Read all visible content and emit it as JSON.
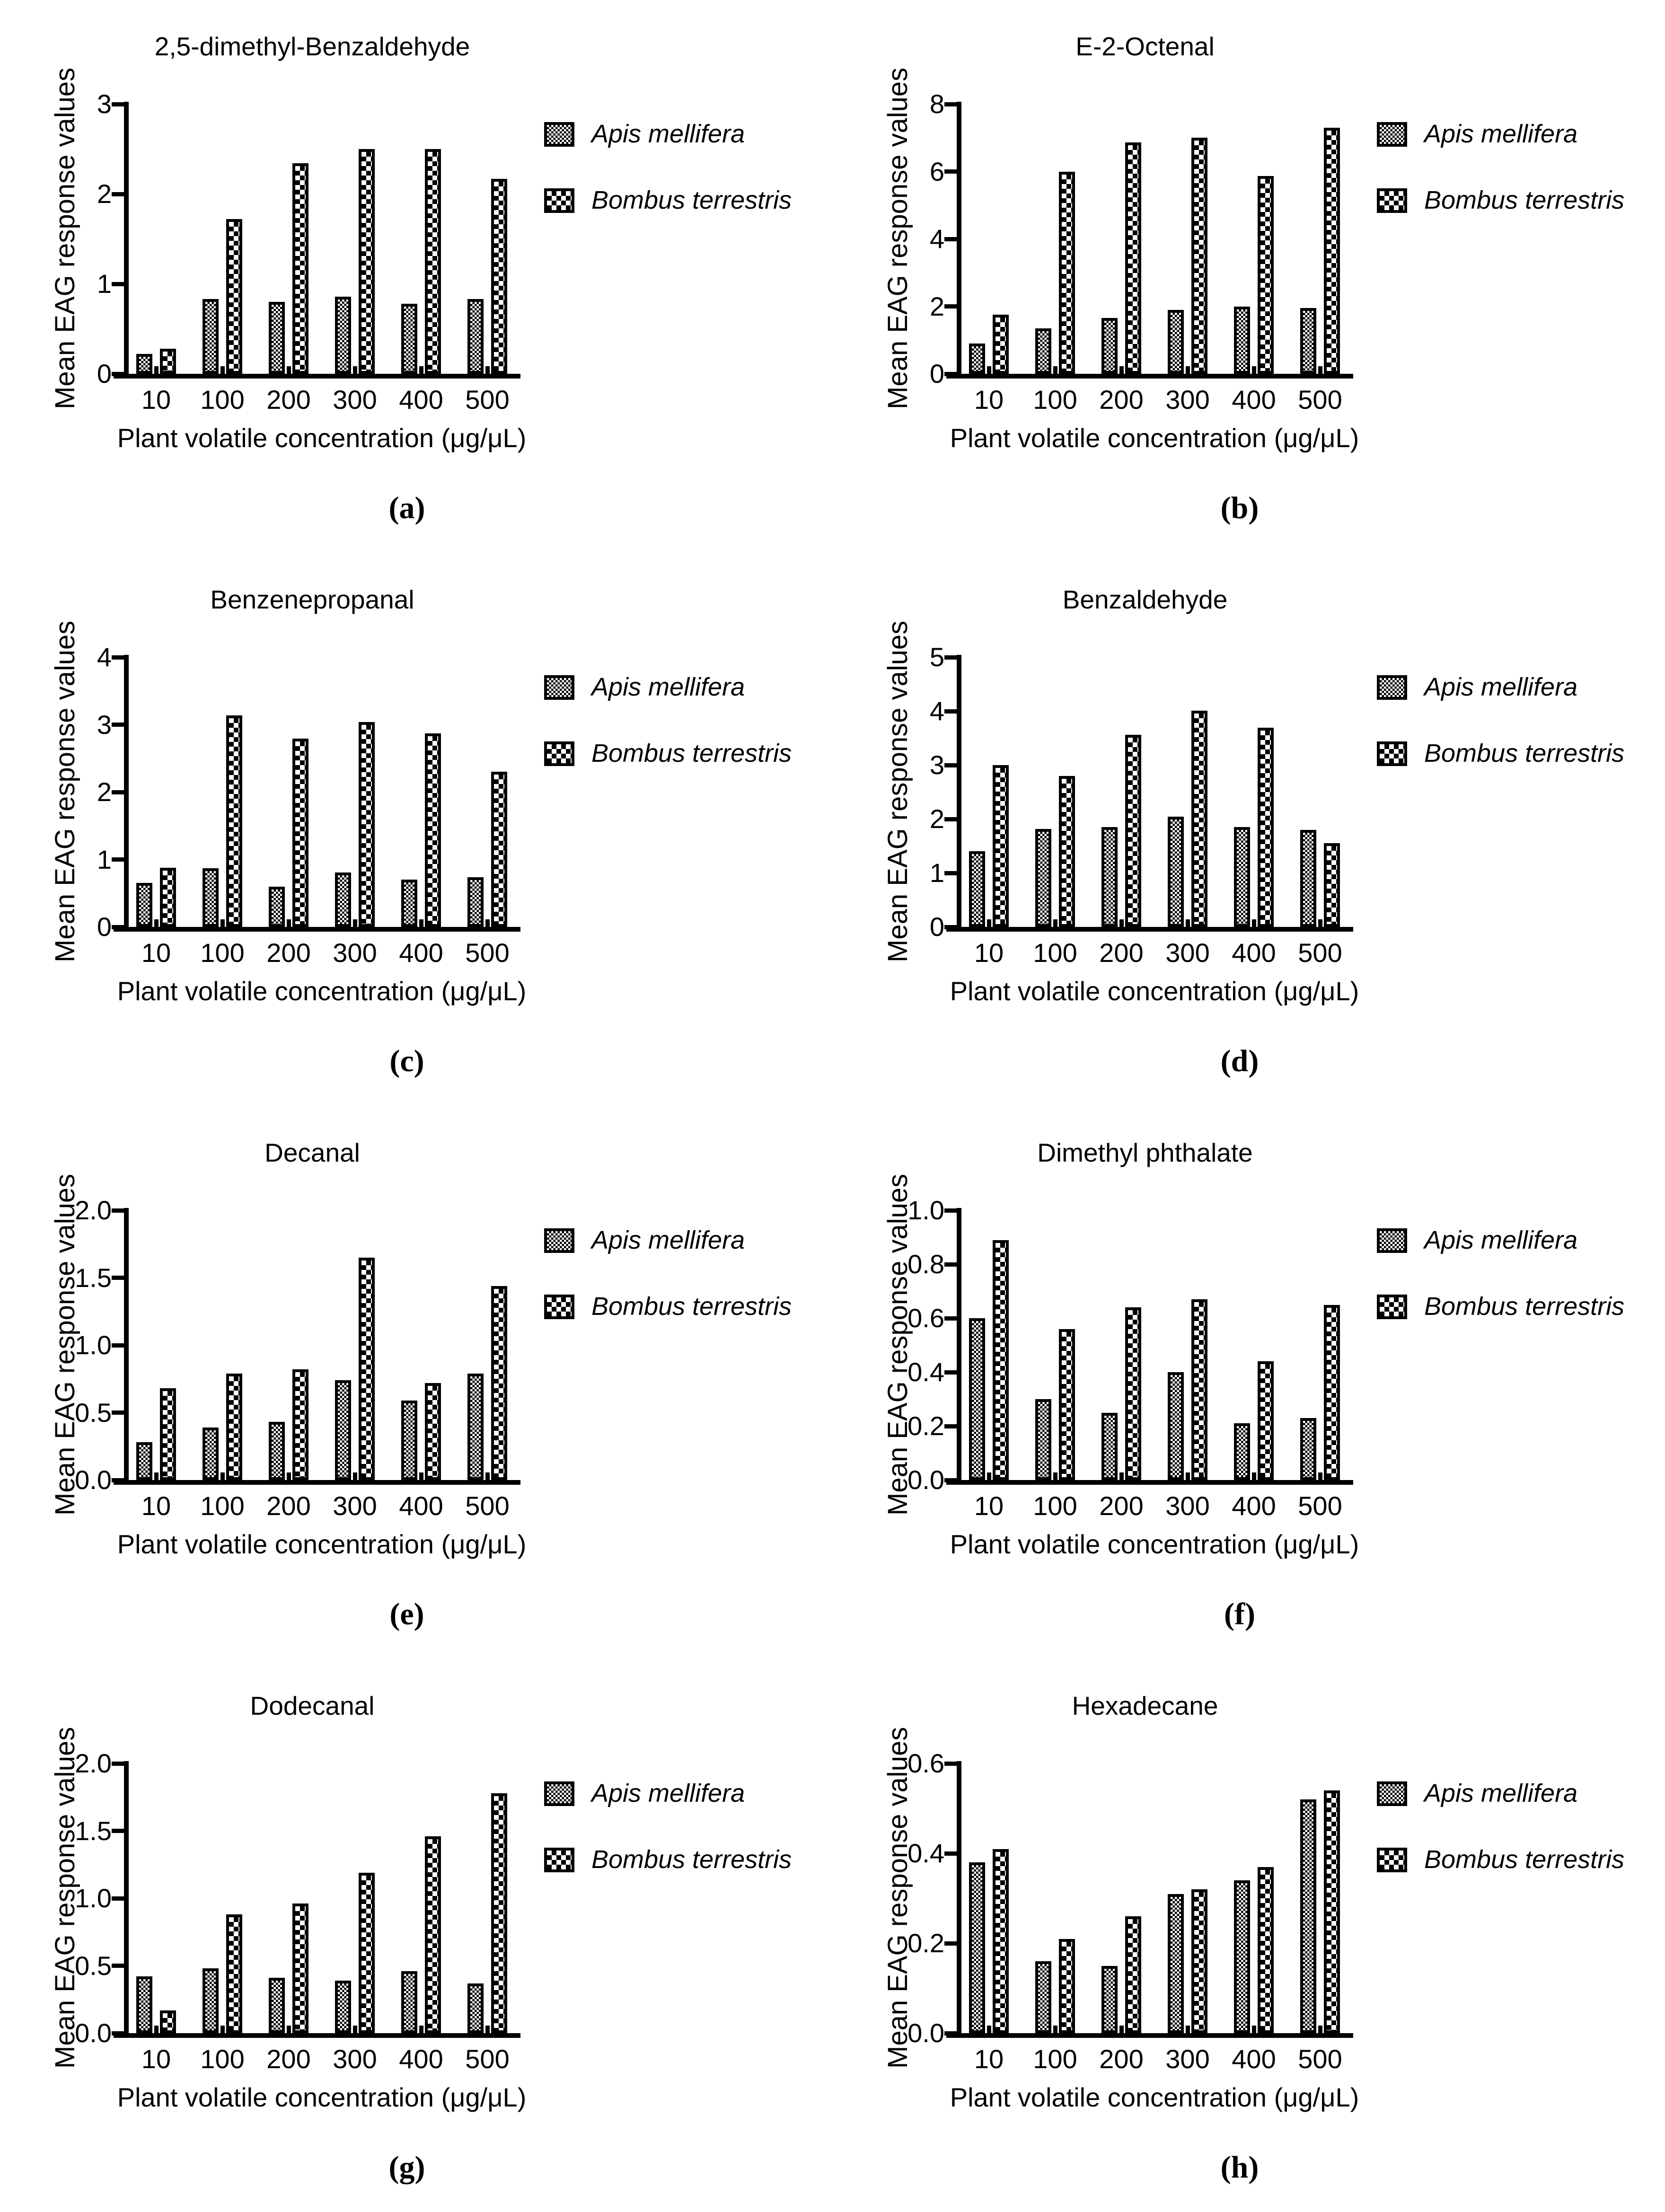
{
  "axes_common": {
    "ylabel": "Mean EAG response values",
    "xlabel": "Plant volatile concentration (μg/μL)"
  },
  "legend": {
    "entries": [
      {
        "label": "Apis mellifera",
        "pattern": "fine-checker"
      },
      {
        "label": "Bombus terrestris",
        "pattern": "coarse-checker"
      }
    ]
  },
  "colors": {
    "ink": "#000000",
    "background": "#ffffff"
  },
  "chart_data": [
    {
      "type": "bar",
      "panel_label": "(a)",
      "title": "2,5-dimethyl-Benzaldehyde",
      "xlabel": "Plant volatile concentration (μg/μL)",
      "ylabel": "Mean EAG response values",
      "categories": [
        "10",
        "100",
        "200",
        "300",
        "400",
        "500"
      ],
      "series": [
        {
          "name": "Apis mellifera",
          "values": [
            0.22,
            0.83,
            0.8,
            0.86,
            0.78,
            0.83
          ]
        },
        {
          "name": "Bombus terrestris",
          "values": [
            0.28,
            1.72,
            2.34,
            2.5,
            2.5,
            2.17
          ]
        }
      ],
      "ylim": [
        0,
        3
      ],
      "yticks": [
        {
          "value": 0,
          "label": "0"
        },
        {
          "value": 1,
          "label": "1"
        },
        {
          "value": 2,
          "label": "2"
        },
        {
          "value": 3,
          "label": "3"
        }
      ],
      "grid": false,
      "legend_position": "right"
    },
    {
      "type": "bar",
      "panel_label": "(b)",
      "title": "E-2-Octenal",
      "xlabel": "Plant volatile concentration (μg/μL)",
      "ylabel": "Mean EAG response values",
      "categories": [
        "10",
        "100",
        "200",
        "300",
        "400",
        "500"
      ],
      "series": [
        {
          "name": "Apis mellifera",
          "values": [
            0.9,
            1.35,
            1.65,
            1.9,
            2.0,
            1.95
          ]
        },
        {
          "name": "Bombus terrestris",
          "values": [
            1.75,
            6.0,
            6.87,
            7.0,
            5.87,
            7.3
          ]
        }
      ],
      "ylim": [
        0,
        8
      ],
      "yticks": [
        {
          "value": 0,
          "label": "0"
        },
        {
          "value": 2,
          "label": "2"
        },
        {
          "value": 4,
          "label": "4"
        },
        {
          "value": 6,
          "label": "6"
        },
        {
          "value": 8,
          "label": "8"
        }
      ],
      "grid": false,
      "legend_position": "right"
    },
    {
      "type": "bar",
      "panel_label": "(c)",
      "title": "Benzenepropanal",
      "xlabel": "Plant volatile concentration (μg/μL)",
      "ylabel": "Mean EAG response values",
      "categories": [
        "10",
        "100",
        "200",
        "300",
        "400",
        "500"
      ],
      "series": [
        {
          "name": "Apis mellifera",
          "values": [
            0.65,
            0.87,
            0.6,
            0.81,
            0.7,
            0.74
          ]
        },
        {
          "name": "Bombus terrestris",
          "values": [
            0.88,
            3.14,
            2.79,
            3.04,
            2.87,
            2.3
          ]
        }
      ],
      "ylim": [
        0,
        4
      ],
      "yticks": [
        {
          "value": 0,
          "label": "0"
        },
        {
          "value": 1,
          "label": "1"
        },
        {
          "value": 2,
          "label": "2"
        },
        {
          "value": 3,
          "label": "3"
        },
        {
          "value": 4,
          "label": "4"
        }
      ],
      "grid": false,
      "legend_position": "right"
    },
    {
      "type": "bar",
      "panel_label": "(d)",
      "title": "Benzaldehyde",
      "xlabel": "Plant volatile concentration (μg/μL)",
      "ylabel": "Mean EAG response values",
      "categories": [
        "10",
        "100",
        "200",
        "300",
        "400",
        "500"
      ],
      "series": [
        {
          "name": "Apis mellifera",
          "values": [
            1.4,
            1.82,
            1.85,
            2.04,
            1.85,
            1.8
          ]
        },
        {
          "name": "Bombus terrestris",
          "values": [
            3.0,
            2.8,
            3.56,
            4.01,
            3.69,
            1.55
          ]
        }
      ],
      "ylim": [
        0,
        5
      ],
      "yticks": [
        {
          "value": 0,
          "label": "0"
        },
        {
          "value": 1,
          "label": "1"
        },
        {
          "value": 2,
          "label": "2"
        },
        {
          "value": 3,
          "label": "3"
        },
        {
          "value": 4,
          "label": "4"
        },
        {
          "value": 5,
          "label": "5"
        }
      ],
      "grid": false,
      "legend_position": "right"
    },
    {
      "type": "bar",
      "panel_label": "(e)",
      "title": "Decanal",
      "xlabel": "Plant volatile concentration (μg/μL)",
      "ylabel": "Mean EAG response values",
      "categories": [
        "10",
        "100",
        "200",
        "300",
        "400",
        "500"
      ],
      "series": [
        {
          "name": "Apis mellifera",
          "values": [
            0.28,
            0.39,
            0.43,
            0.74,
            0.59,
            0.79
          ]
        },
        {
          "name": "Bombus terrestris",
          "values": [
            0.68,
            0.79,
            0.82,
            1.65,
            0.72,
            1.44
          ]
        }
      ],
      "ylim": [
        0,
        2
      ],
      "yticks": [
        {
          "value": 0,
          "label": "0.0"
        },
        {
          "value": 0.5,
          "label": "0.5"
        },
        {
          "value": 1,
          "label": "1.0"
        },
        {
          "value": 1.5,
          "label": "1.5"
        },
        {
          "value": 2,
          "label": "2.0"
        }
      ],
      "grid": false,
      "legend_position": "right"
    },
    {
      "type": "bar",
      "panel_label": "(f)",
      "title": "Dimethyl phthalate",
      "xlabel": "Plant volatile concentration (μg/μL)",
      "ylabel": "Mean EAG response values",
      "categories": [
        "10",
        "100",
        "200",
        "300",
        "400",
        "500"
      ],
      "series": [
        {
          "name": "Apis mellifera",
          "values": [
            0.6,
            0.3,
            0.25,
            0.4,
            0.21,
            0.23
          ]
        },
        {
          "name": "Bombus terrestris",
          "values": [
            0.89,
            0.56,
            0.64,
            0.67,
            0.44,
            0.65
          ]
        }
      ],
      "ylim": [
        0,
        1
      ],
      "yticks": [
        {
          "value": 0,
          "label": "0.0"
        },
        {
          "value": 0.2,
          "label": "0.2"
        },
        {
          "value": 0.4,
          "label": "0.4"
        },
        {
          "value": 0.6,
          "label": "0.6"
        },
        {
          "value": 0.8,
          "label": "0.8"
        },
        {
          "value": 1,
          "label": "1.0"
        }
      ],
      "grid": false,
      "legend_position": "right"
    },
    {
      "type": "bar",
      "panel_label": "(g)",
      "title": "Dodecanal",
      "xlabel": "Plant volatile concentration (μg/μL)",
      "ylabel": "Mean EAG response values",
      "categories": [
        "10",
        "100",
        "200",
        "300",
        "400",
        "500"
      ],
      "series": [
        {
          "name": "Apis mellifera",
          "values": [
            0.42,
            0.48,
            0.41,
            0.39,
            0.46,
            0.37
          ]
        },
        {
          "name": "Bombus terrestris",
          "values": [
            0.17,
            0.88,
            0.96,
            1.19,
            1.46,
            1.78
          ]
        }
      ],
      "ylim": [
        0,
        2
      ],
      "yticks": [
        {
          "value": 0,
          "label": "0.0"
        },
        {
          "value": 0.5,
          "label": "0.5"
        },
        {
          "value": 1,
          "label": "1.0"
        },
        {
          "value": 1.5,
          "label": "1.5"
        },
        {
          "value": 2,
          "label": "2.0"
        }
      ],
      "grid": false,
      "legend_position": "right"
    },
    {
      "type": "bar",
      "panel_label": "(h)",
      "title": "Hexadecane",
      "xlabel": "Plant volatile concentration (μg/μL)",
      "ylabel": "Mean EAG response values",
      "categories": [
        "10",
        "100",
        "200",
        "300",
        "400",
        "500"
      ],
      "series": [
        {
          "name": "Apis mellifera",
          "values": [
            0.38,
            0.16,
            0.15,
            0.31,
            0.34,
            0.52
          ]
        },
        {
          "name": "Bombus terrestris",
          "values": [
            0.41,
            0.21,
            0.26,
            0.32,
            0.37,
            0.54
          ]
        }
      ],
      "ylim": [
        0,
        0.6
      ],
      "yticks": [
        {
          "value": 0,
          "label": "0.0"
        },
        {
          "value": 0.2,
          "label": "0.2"
        },
        {
          "value": 0.4,
          "label": "0.4"
        },
        {
          "value": 0.6,
          "label": "0.6"
        }
      ],
      "grid": false,
      "legend_position": "right"
    }
  ]
}
